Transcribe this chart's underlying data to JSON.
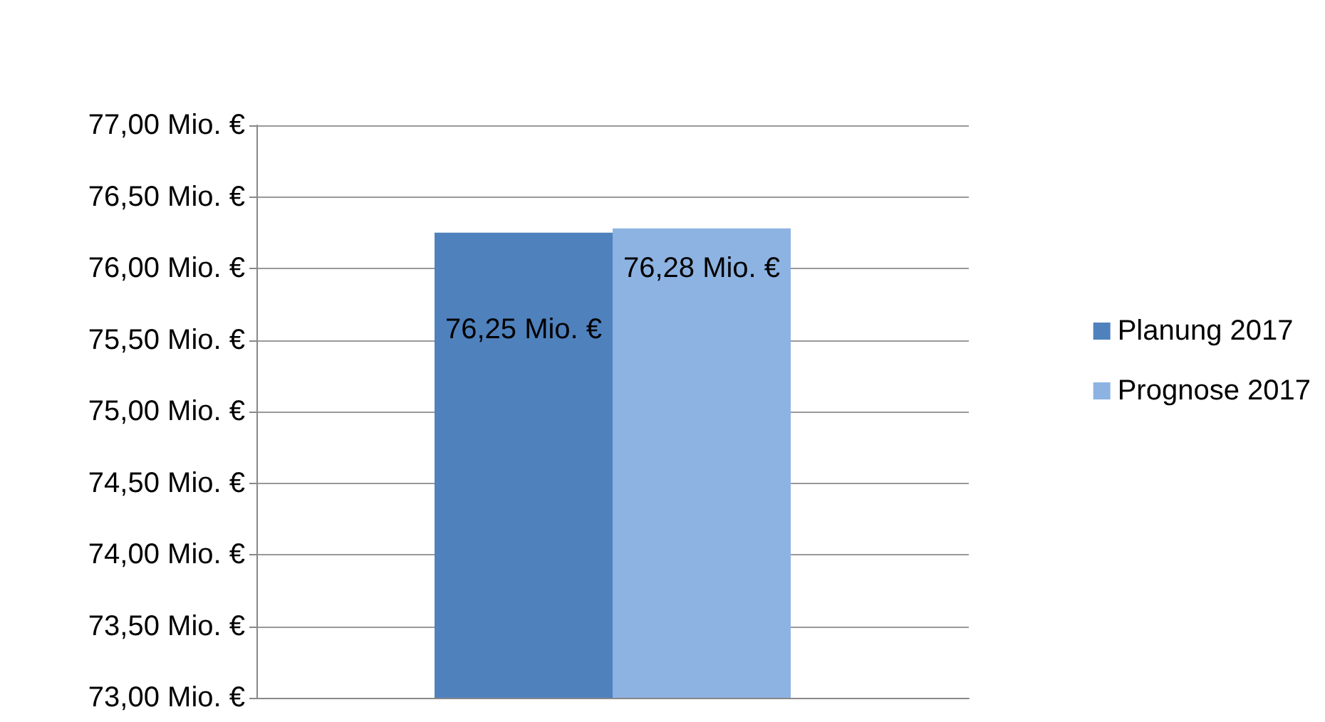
{
  "chart_data": {
    "type": "bar",
    "categories": [
      null
    ],
    "series": [
      {
        "name": "Planung 2017",
        "color": "#4f81bd",
        "values": [
          76.25
        ],
        "value_labels": [
          "76,25 Mio. €"
        ]
      },
      {
        "name": "Prognose 2017",
        "color": "#8db3e2",
        "values": [
          76.28
        ],
        "value_labels": [
          "76,28 Mio. €"
        ]
      }
    ],
    "ylim": [
      73,
      77
    ],
    "yticks": [
      {
        "value": 73,
        "label": "73,00 Mio. €"
      },
      {
        "value": 73.5,
        "label": "73,50 Mio. €"
      },
      {
        "value": 74,
        "label": "74,00 Mio. €"
      },
      {
        "value": 74.5,
        "label": "74,50 Mio. €"
      },
      {
        "value": 75,
        "label": "75,00 Mio. €"
      },
      {
        "value": 75.5,
        "label": "75,50 Mio. €"
      },
      {
        "value": 76,
        "label": "76,00 Mio. €"
      },
      {
        "value": 76.5,
        "label": "76,50 Mio. €"
      },
      {
        "value": 77,
        "label": "77,00 Mio. €"
      }
    ],
    "grid": "y",
    "legend": "right"
  }
}
